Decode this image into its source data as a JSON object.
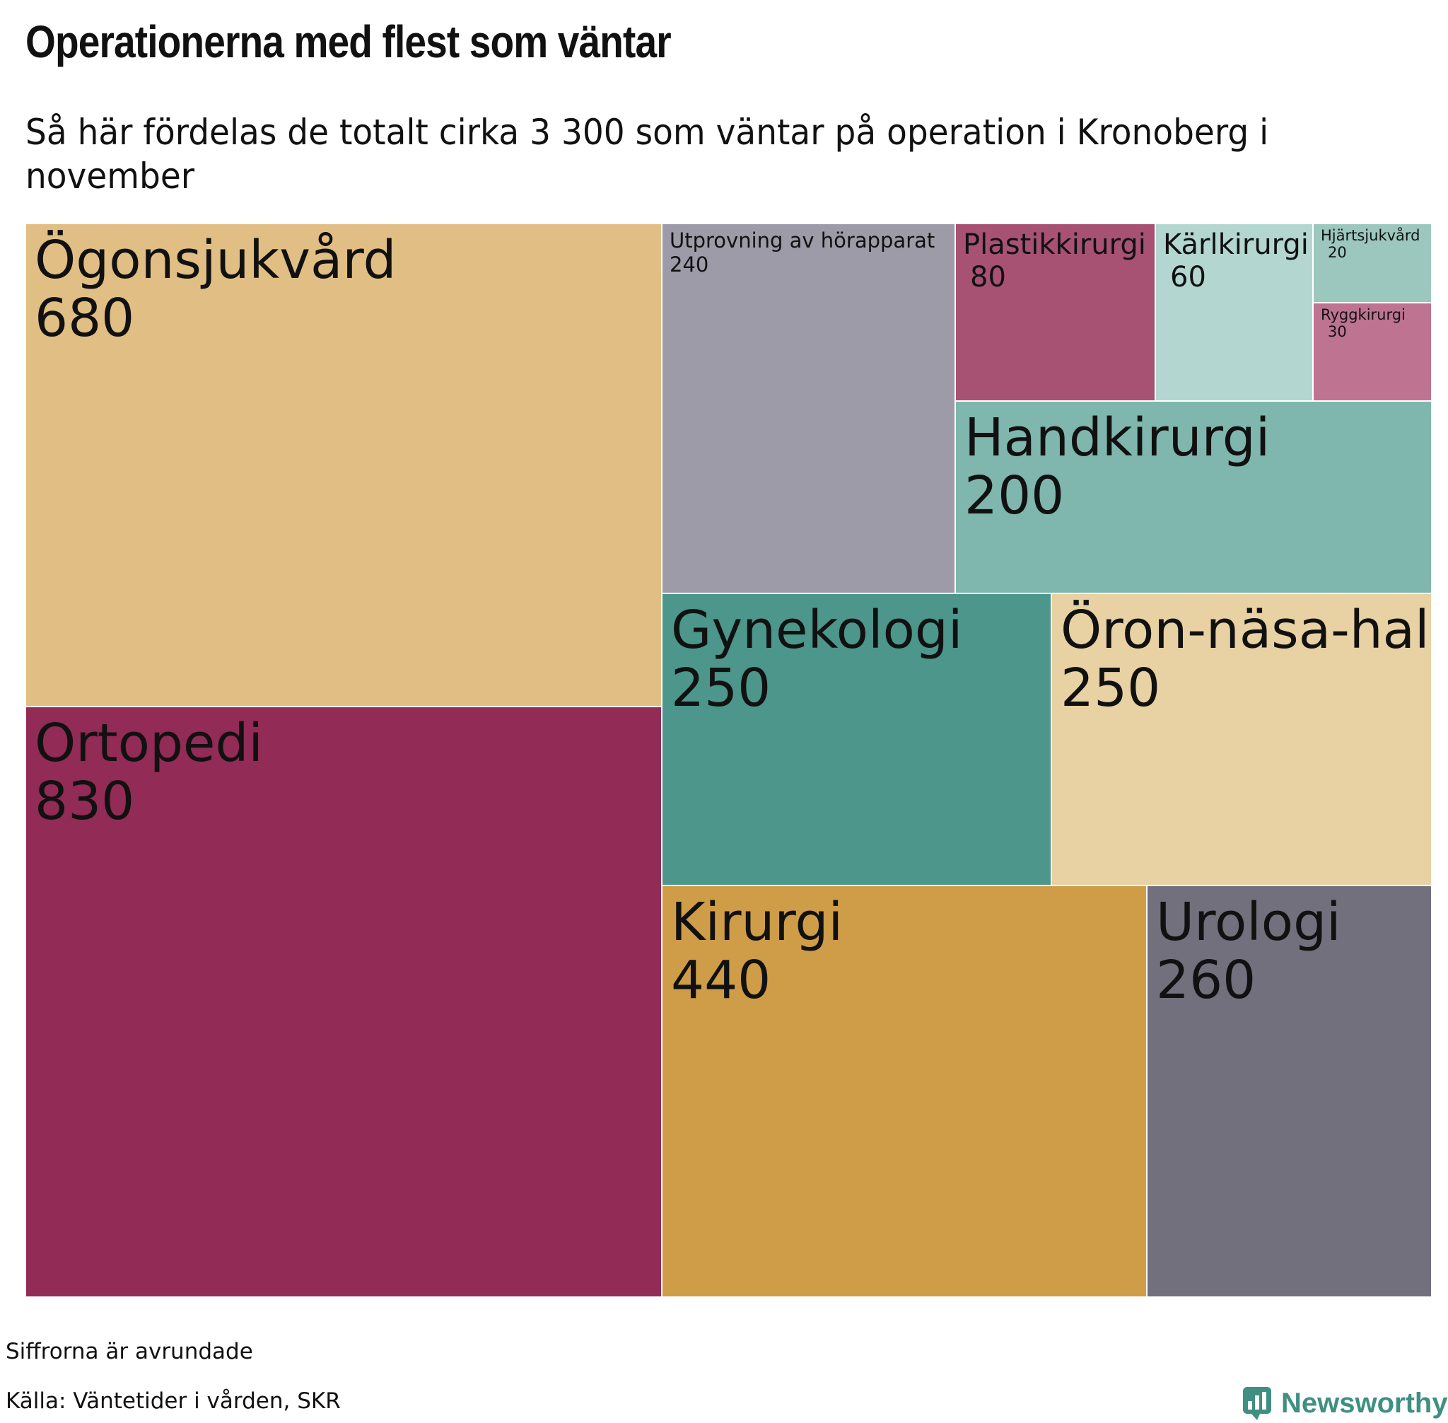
{
  "header": {
    "title": "Operationerna med flest som väntar",
    "subtitle": "Så här fördelas de totalt cirka 3 300 som väntar på operation i Kronoberg i november"
  },
  "footer": {
    "note": "Siffrorna är avrundade",
    "source": "Källa: Väntetider i vården, SKR",
    "brand": "Newsworthy"
  },
  "colors": {
    "brand": "#3f8f82"
  },
  "chart_data": {
    "type": "treemap",
    "title": "Operationerna med flest som väntar",
    "subtitle": "Så här fördelas de totalt cirka 3 300 som väntar på operation i Kronoberg i november",
    "total_approx": 3300,
    "items": [
      {
        "name": "Ögonsjukvård",
        "value": 680,
        "color": "#e1bf84"
      },
      {
        "name": "Ortopedi",
        "value": 830,
        "color": "#922b56"
      },
      {
        "name": "Utprovning av hörapparat",
        "value": 240,
        "color": "#9d9ba8"
      },
      {
        "name": "Plastikkirurgi",
        "value": 80,
        "color": "#a85273"
      },
      {
        "name": "Kärlkirurgi",
        "value": 60,
        "color": "#b3d7d0"
      },
      {
        "name": "Hjärtsjukvård",
        "value": 20,
        "color": "#9bc7bf"
      },
      {
        "name": "Ryggkirurgi",
        "value": 30,
        "color": "#be7391"
      },
      {
        "name": "Handkirurgi",
        "value": 200,
        "color": "#7fb6ae"
      },
      {
        "name": "Gynekologi",
        "value": 250,
        "color": "#4c968c"
      },
      {
        "name": "Öron-näsa-hals",
        "value": 250,
        "color": "#e8d1a2"
      },
      {
        "name": "Kirurgi",
        "value": 440,
        "color": "#cf9c48"
      },
      {
        "name": "Urologi",
        "value": 260,
        "color": "#72707d"
      }
    ]
  }
}
